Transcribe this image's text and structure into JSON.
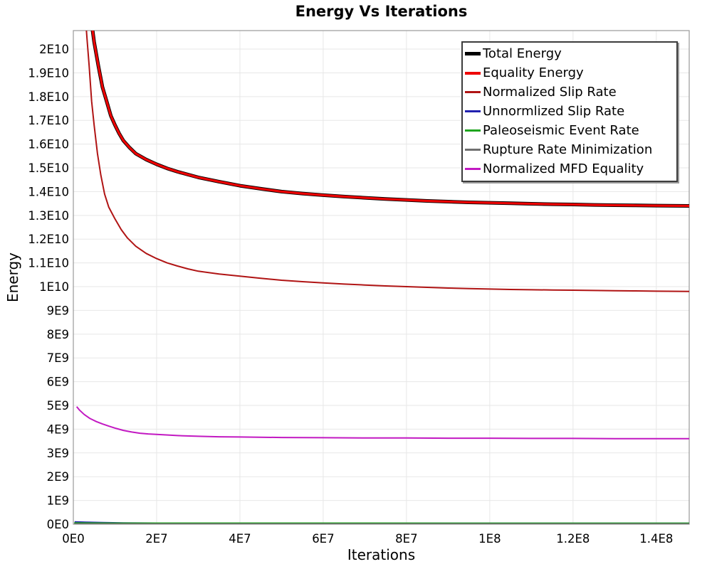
{
  "title": "Energy Vs Iterations",
  "axes": {
    "x_label": "Iterations",
    "y_label": "Energy",
    "xlim": [
      0,
      147900000.0
    ],
    "ylim": [
      0,
      20780000000.0
    ],
    "grid": true,
    "x_ticks": [
      {
        "value": 0,
        "label": "0E0"
      },
      {
        "value": 20000000.0,
        "label": "2E7"
      },
      {
        "value": 40000000.0,
        "label": "4E7"
      },
      {
        "value": 60000000.0,
        "label": "6E7"
      },
      {
        "value": 80000000.0,
        "label": "8E7"
      },
      {
        "value": 100000000.0,
        "label": "1E8"
      },
      {
        "value": 120000000.0,
        "label": "1.2E8"
      },
      {
        "value": 140000000.0,
        "label": "1.4E8"
      }
    ],
    "y_ticks": [
      {
        "value": 0,
        "label": "0E0"
      },
      {
        "value": 1000000000.0,
        "label": "1E9"
      },
      {
        "value": 2000000000.0,
        "label": "2E9"
      },
      {
        "value": 3000000000.0,
        "label": "3E9"
      },
      {
        "value": 4000000000.0,
        "label": "4E9"
      },
      {
        "value": 5000000000.0,
        "label": "5E9"
      },
      {
        "value": 6000000000.0,
        "label": "6E9"
      },
      {
        "value": 7000000000.0,
        "label": "7E9"
      },
      {
        "value": 8000000000.0,
        "label": "8E9"
      },
      {
        "value": 9000000000.0,
        "label": "9E9"
      },
      {
        "value": 10000000000.0,
        "label": "1E10"
      },
      {
        "value": 11000000000.0,
        "label": "1.1E10"
      },
      {
        "value": 12000000000.0,
        "label": "1.2E10"
      },
      {
        "value": 13000000000.0,
        "label": "1.3E10"
      },
      {
        "value": 14000000000.0,
        "label": "1.4E10"
      },
      {
        "value": 15000000000.0,
        "label": "1.5E10"
      },
      {
        "value": 16000000000.0,
        "label": "1.6E10"
      },
      {
        "value": 17000000000.0,
        "label": "1.7E10"
      },
      {
        "value": 18000000000.0,
        "label": "1.8E10"
      },
      {
        "value": 19000000000.0,
        "label": "1.9E10"
      },
      {
        "value": 20000000000.0,
        "label": "2E10"
      }
    ]
  },
  "colors": {
    "grid": "#e7e7e7",
    "border": "#999999",
    "legend_border": "#3c3c3c",
    "background": "#ffffff"
  },
  "chart_data": {
    "type": "line",
    "title": "Energy Vs Iterations",
    "xlabel": "Iterations",
    "ylabel": "Energy",
    "xlim": [
      0,
      147900000.0
    ],
    "ylim": [
      0,
      20780000000.0
    ],
    "legend_position": "top-right",
    "series": [
      {
        "name": "Total Energy",
        "color": "#000000",
        "width": 5,
        "legend_swatch_height": 5,
        "points": [
          [
            4000000.0,
            21600000000.0
          ],
          [
            5000000.0,
            20300000000.0
          ],
          [
            6000000.0,
            19300000000.0
          ],
          [
            7000000.0,
            18400000000.0
          ],
          [
            8000000.0,
            17800000000.0
          ],
          [
            9000000.0,
            17200000000.0
          ],
          [
            10000000.0,
            16800000000.0
          ],
          [
            11000000.0,
            16450000000.0
          ],
          [
            12000000.0,
            16150000000.0
          ],
          [
            13500000.0,
            15850000000.0
          ],
          [
            15000000.0,
            15600000000.0
          ],
          [
            17500000.0,
            15350000000.0
          ],
          [
            20000000.0,
            15150000000.0
          ],
          [
            22500000.0,
            14980000000.0
          ],
          [
            25000000.0,
            14840000000.0
          ],
          [
            27500000.0,
            14720000000.0
          ],
          [
            30000000.0,
            14600000000.0
          ],
          [
            35000000.0,
            14420000000.0
          ],
          [
            40000000.0,
            14250000000.0
          ],
          [
            45000000.0,
            14120000000.0
          ],
          [
            50000000.0,
            14000000000.0
          ],
          [
            55000000.0,
            13920000000.0
          ],
          [
            60000000.0,
            13850000000.0
          ],
          [
            65000000.0,
            13790000000.0
          ],
          [
            70000000.0,
            13740000000.0
          ],
          [
            75000000.0,
            13690000000.0
          ],
          [
            80000000.0,
            13650000000.0
          ],
          [
            85000000.0,
            13610000000.0
          ],
          [
            90000000.0,
            13580000000.0
          ],
          [
            95000000.0,
            13550000000.0
          ],
          [
            100000000.0,
            13530000000.0
          ],
          [
            105000000.0,
            13510000000.0
          ],
          [
            110000000.0,
            13490000000.0
          ],
          [
            115000000.0,
            13470000000.0
          ],
          [
            120000000.0,
            13460000000.0
          ],
          [
            125000000.0,
            13440000000.0
          ],
          [
            130000000.0,
            13430000000.0
          ],
          [
            135000000.0,
            13420000000.0
          ],
          [
            140000000.0,
            13410000000.0
          ],
          [
            147900000.0,
            13400000000.0
          ]
        ]
      },
      {
        "name": "Equality Energy",
        "color": "#ee0000",
        "width": 3.2,
        "legend_swatch_height": 4,
        "same_as": 0
      },
      {
        "name": "Normalized Slip Rate",
        "color": "#b01414",
        "width": 2,
        "legend_swatch_height": 2.5,
        "points": [
          [
            2800000.0,
            21600000000.0
          ],
          [
            3300000.0,
            20400000000.0
          ],
          [
            3800000.0,
            19300000000.0
          ],
          [
            4400000.0,
            17800000000.0
          ],
          [
            5000000.0,
            16800000000.0
          ],
          [
            5800000.0,
            15600000000.0
          ],
          [
            6600000.0,
            14700000000.0
          ],
          [
            7500000.0,
            13900000000.0
          ],
          [
            8500000.0,
            13350000000.0
          ],
          [
            10000000.0,
            12850000000.0
          ],
          [
            11500000.0,
            12400000000.0
          ],
          [
            13000000.0,
            12050000000.0
          ],
          [
            15000000.0,
            11700000000.0
          ],
          [
            17500000.0,
            11400000000.0
          ],
          [
            20000000.0,
            11180000000.0
          ],
          [
            22500000.0,
            11000000000.0
          ],
          [
            25000000.0,
            10870000000.0
          ],
          [
            27500000.0,
            10750000000.0
          ],
          [
            30000000.0,
            10650000000.0
          ],
          [
            35000000.0,
            10530000000.0
          ],
          [
            40000000.0,
            10440000000.0
          ],
          [
            45000000.0,
            10350000000.0
          ],
          [
            50000000.0,
            10270000000.0
          ],
          [
            55000000.0,
            10210000000.0
          ],
          [
            60000000.0,
            10160000000.0
          ],
          [
            65000000.0,
            10110000000.0
          ],
          [
            70000000.0,
            10070000000.0
          ],
          [
            75000000.0,
            10030000000.0
          ],
          [
            80000000.0,
            10000000000.0
          ],
          [
            85000000.0,
            9970000000.0
          ],
          [
            90000000.0,
            9940000000.0
          ],
          [
            95000000.0,
            9920000000.0
          ],
          [
            100000000.0,
            9900000000.0
          ],
          [
            105000000.0,
            9880000000.0
          ],
          [
            110000000.0,
            9870000000.0
          ],
          [
            115000000.0,
            9860000000.0
          ],
          [
            120000000.0,
            9850000000.0
          ],
          [
            125000000.0,
            9840000000.0
          ],
          [
            130000000.0,
            9830000000.0
          ],
          [
            135000000.0,
            9820000000.0
          ],
          [
            140000000.0,
            9810000000.0
          ],
          [
            147900000.0,
            9800000000.0
          ]
        ]
      },
      {
        "name": "Unnormlized Slip Rate",
        "color": "#2121b0",
        "width": 2,
        "legend_swatch_height": 2.5,
        "points": [
          [
            300000.0,
            100000000.0
          ],
          [
            3000000.0,
            85000000.0
          ],
          [
            7000000.0,
            70000000.0
          ],
          [
            12000000.0,
            55000000.0
          ],
          [
            20000000.0,
            45000000.0
          ],
          [
            30000000.0,
            40000000.0
          ],
          [
            50000000.0,
            37000000.0
          ],
          [
            80000000.0,
            35000000.0
          ],
          [
            120000000.0,
            35000000.0
          ],
          [
            147900000.0,
            35000000.0
          ]
        ]
      },
      {
        "name": "Paleoseismic Event Rate",
        "color": "#1fa51f",
        "width": 2,
        "legend_swatch_height": 2.5,
        "points": [
          [
            200000.0,
            50000000.0
          ],
          [
            10000000.0,
            46000000.0
          ],
          [
            50000000.0,
            44000000.0
          ],
          [
            100000000.0,
            42000000.0
          ],
          [
            147900000.0,
            42000000.0
          ]
        ]
      },
      {
        "name": "Rupture Rate Minimization",
        "color": "#707070",
        "width": 2,
        "legend_swatch_height": 2.5,
        "points": [
          [
            200000.0,
            12000000.0
          ],
          [
            70000000.0,
            12000000.0
          ],
          [
            147900000.0,
            12000000.0
          ]
        ]
      },
      {
        "name": "Normalized MFD Equality",
        "color": "#c219c2",
        "width": 2,
        "legend_swatch_height": 2.5,
        "points": [
          [
            800000.0,
            4950000000.0
          ],
          [
            1500000.0,
            4800000000.0
          ],
          [
            2600000.0,
            4620000000.0
          ],
          [
            4000000.0,
            4450000000.0
          ],
          [
            5500000.0,
            4320000000.0
          ],
          [
            7000000.0,
            4220000000.0
          ],
          [
            8500000.0,
            4130000000.0
          ],
          [
            10300000.0,
            4030000000.0
          ],
          [
            12000000.0,
            3950000000.0
          ],
          [
            14000000.0,
            3880000000.0
          ],
          [
            16000000.0,
            3830000000.0
          ],
          [
            18000000.0,
            3800000000.0
          ],
          [
            20000000.0,
            3780000000.0
          ],
          [
            25000000.0,
            3730000000.0
          ],
          [
            30000000.0,
            3700000000.0
          ],
          [
            35000000.0,
            3680000000.0
          ],
          [
            40000000.0,
            3670000000.0
          ],
          [
            50000000.0,
            3650000000.0
          ],
          [
            60000000.0,
            3640000000.0
          ],
          [
            70000000.0,
            3630000000.0
          ],
          [
            80000000.0,
            3630000000.0
          ],
          [
            90000000.0,
            3620000000.0
          ],
          [
            100000000.0,
            3620000000.0
          ],
          [
            110000000.0,
            3610000000.0
          ],
          [
            120000000.0,
            3610000000.0
          ],
          [
            130000000.0,
            3600000000.0
          ],
          [
            140000000.0,
            3600000000.0
          ],
          [
            147900000.0,
            3600000000.0
          ]
        ]
      }
    ]
  }
}
